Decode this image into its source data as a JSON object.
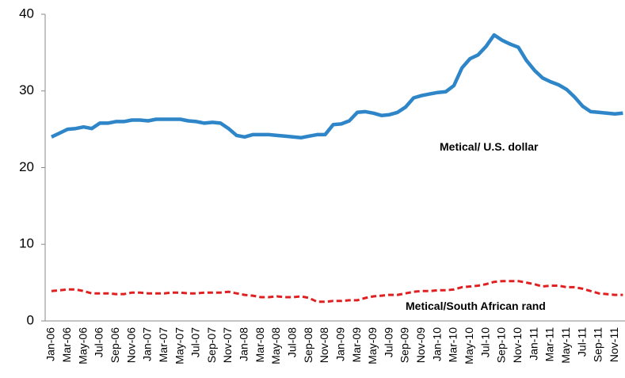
{
  "chart_data": {
    "type": "line",
    "categories": [
      "Jan-06",
      null,
      "Mar-06",
      null,
      "May-06",
      null,
      "Jul-06",
      null,
      "Sep-06",
      null,
      "Nov-06",
      null,
      "Jan-07",
      null,
      "Mar-07",
      null,
      "May-07",
      null,
      "Jul-07",
      null,
      "Sep-07",
      null,
      "Nov-07",
      null,
      "Jan-08",
      null,
      "Mar-08",
      null,
      "May-08",
      null,
      "Jul-08",
      null,
      "Sep-08",
      null,
      "Nov-08",
      null,
      "Jan-09",
      null,
      "Mar-09",
      null,
      "May-09",
      null,
      "Jul-09",
      null,
      "Sep-09",
      null,
      "Nov-09",
      null,
      "Jan-10",
      null,
      "Mar-10",
      null,
      "May-10",
      null,
      "Jul-10",
      null,
      "Sep-10",
      null,
      "Nov-10",
      null,
      "Jan-11",
      null,
      "Mar-11",
      null,
      "May-11",
      null,
      "Jul-11",
      null,
      "Sep-11",
      null,
      "Nov-11",
      null
    ],
    "series": [
      {
        "name": "Metical/ U.S. dollar",
        "color": "#2e86c8",
        "style": "solid",
        "values": [
          24.0,
          24.5,
          25.0,
          25.1,
          25.3,
          25.1,
          25.8,
          25.8,
          26.0,
          26.0,
          26.2,
          26.2,
          26.1,
          26.3,
          26.3,
          26.3,
          26.3,
          26.1,
          26.0,
          25.8,
          25.9,
          25.8,
          25.1,
          24.2,
          24.0,
          24.3,
          24.3,
          24.3,
          24.2,
          24.1,
          24.0,
          23.9,
          24.1,
          24.3,
          24.3,
          25.6,
          25.7,
          26.1,
          27.2,
          27.3,
          27.1,
          26.8,
          26.9,
          27.2,
          27.9,
          29.1,
          29.4,
          29.6,
          29.8,
          29.9,
          30.7,
          33.0,
          34.2,
          34.7,
          35.8,
          37.3,
          36.6,
          36.1,
          35.7,
          34.0,
          32.7,
          31.7,
          31.2,
          30.8,
          30.2,
          29.2,
          28.0,
          27.3,
          27.2,
          27.1,
          27.0,
          27.1
        ]
      },
      {
        "name": "Metical/South African rand",
        "color": "#e02020",
        "style": "dashed",
        "values": [
          3.9,
          4.0,
          4.1,
          4.1,
          3.9,
          3.6,
          3.6,
          3.6,
          3.5,
          3.5,
          3.7,
          3.7,
          3.6,
          3.6,
          3.6,
          3.7,
          3.7,
          3.6,
          3.6,
          3.7,
          3.7,
          3.7,
          3.8,
          3.6,
          3.4,
          3.3,
          3.1,
          3.1,
          3.2,
          3.1,
          3.1,
          3.2,
          3.0,
          2.5,
          2.5,
          2.6,
          2.6,
          2.7,
          2.7,
          3.0,
          3.2,
          3.3,
          3.4,
          3.4,
          3.6,
          3.8,
          3.9,
          3.9,
          4.0,
          4.0,
          4.1,
          4.4,
          4.5,
          4.6,
          4.8,
          5.1,
          5.2,
          5.2,
          5.2,
          5.0,
          4.8,
          4.5,
          4.6,
          4.6,
          4.4,
          4.4,
          4.2,
          3.9,
          3.6,
          3.5,
          3.4,
          3.4
        ]
      }
    ],
    "ylim": [
      0,
      40
    ],
    "yticks": [
      0,
      10,
      20,
      30,
      40
    ],
    "grid": false
  }
}
